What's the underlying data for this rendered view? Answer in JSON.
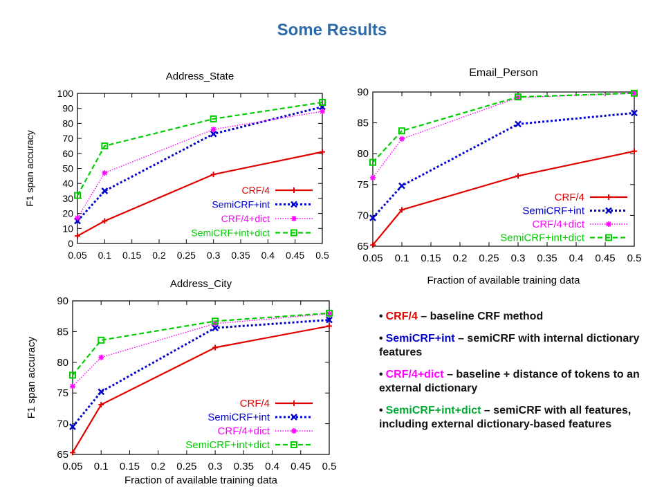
{
  "page": {
    "title": "Some Results"
  },
  "legend_labels": [
    "CRF/4",
    "SemiCRF+int",
    "CRF/4+dict",
    "SemiCRF+int+dict"
  ],
  "notes": [
    {
      "term": "CRF/4",
      "color": "#e00000",
      "text": " – baseline CRF method"
    },
    {
      "term": "SemiCRF+int",
      "color": "#0000cc",
      "text": " – semiCRF with internal dictionary features"
    },
    {
      "term": "CRF/4+dict",
      "color": "#ff00ff",
      "text": " – baseline + distance of tokens to an external dictionary"
    },
    {
      "term": "SemiCRF+int+dict",
      "color": "#00aa33",
      "text": " – semiCRF with all features, including external dictionary-based features"
    }
  ],
  "chart_data": [
    {
      "type": "line",
      "title": "Address_State",
      "xlabel": "",
      "ylabel": "F1 span accuracy",
      "x": [
        0.05,
        0.1,
        0.3,
        0.5
      ],
      "xticks": [
        "0.05",
        "0.1",
        "0.15",
        "0.2",
        "0.25",
        "0.3",
        "0.35",
        "0.4",
        "0.45",
        "0.5"
      ],
      "yticks": [
        "0",
        "10",
        "20",
        "30",
        "40",
        "50",
        "60",
        "70",
        "80",
        "90",
        "100"
      ],
      "xlim": [
        0.05,
        0.5
      ],
      "ylim": [
        0,
        100
      ],
      "legend": "bottom-right",
      "grid": false,
      "series": [
        {
          "name": "CRF/4",
          "values": [
            5,
            15,
            46,
            61
          ],
          "color": "#e00000",
          "style": "solid",
          "marker": "plus"
        },
        {
          "name": "SemiCRF+int",
          "values": [
            15,
            35,
            73,
            91
          ],
          "color": "#0000cc",
          "style": "dotted",
          "marker": "cross"
        },
        {
          "name": "CRF/4+dict",
          "values": [
            17,
            47,
            76,
            88
          ],
          "color": "#ff00ff",
          "style": "dotted-fine",
          "marker": "star"
        },
        {
          "name": "SemiCRF+int+dict",
          "values": [
            32,
            65,
            83,
            94
          ],
          "color": "#00cc00",
          "style": "dashed",
          "marker": "square"
        }
      ]
    },
    {
      "type": "line",
      "title": "Email_Person",
      "xlabel": "Fraction of available training data",
      "ylabel": "",
      "x": [
        0.05,
        0.1,
        0.3,
        0.5
      ],
      "xticks": [
        "0.05",
        "0.1",
        "0.15",
        "0.2",
        "0.25",
        "0.3",
        "0.35",
        "0.4",
        "0.45",
        "0.5"
      ],
      "yticks": [
        "65",
        "70",
        "75",
        "80",
        "85",
        "90"
      ],
      "xlim": [
        0.05,
        0.5
      ],
      "ylim": [
        65,
        90
      ],
      "legend": "bottom-right",
      "grid": false,
      "series": [
        {
          "name": "CRF/4",
          "values": [
            65.2,
            70.9,
            76.4,
            80.4
          ],
          "color": "#e00000",
          "style": "solid",
          "marker": "plus"
        },
        {
          "name": "SemiCRF+int",
          "values": [
            69.6,
            74.8,
            84.8,
            86.6
          ],
          "color": "#0000cc",
          "style": "dotted",
          "marker": "cross"
        },
        {
          "name": "CRF/4+dict",
          "values": [
            76.1,
            82.4,
            89.1,
            89.8
          ],
          "color": "#ff00ff",
          "style": "dotted-fine",
          "marker": "star"
        },
        {
          "name": "SemiCRF+int+dict",
          "values": [
            78.6,
            83.7,
            89.2,
            89.8
          ],
          "color": "#00cc00",
          "style": "dashed",
          "marker": "square"
        }
      ]
    },
    {
      "type": "line",
      "title": "Address_City",
      "xlabel": "Fraction of available training data",
      "ylabel": "F1 span accuracy",
      "x": [
        0.05,
        0.1,
        0.3,
        0.5
      ],
      "xticks": [
        "0.05",
        "0.1",
        "0.15",
        "0.2",
        "0.25",
        "0.3",
        "0.35",
        "0.4",
        "0.45",
        "0.5"
      ],
      "yticks": [
        "65",
        "70",
        "75",
        "80",
        "85",
        "90"
      ],
      "xlim": [
        0.05,
        0.5
      ],
      "ylim": [
        65,
        90
      ],
      "legend": "bottom-right",
      "grid": false,
      "series": [
        {
          "name": "CRF/4",
          "values": [
            65.3,
            73.1,
            82.4,
            85.9
          ],
          "color": "#e00000",
          "style": "solid",
          "marker": "plus"
        },
        {
          "name": "SemiCRF+int",
          "values": [
            69.5,
            75.2,
            85.6,
            86.9
          ],
          "color": "#0000cc",
          "style": "dotted",
          "marker": "cross"
        },
        {
          "name": "CRF/4+dict",
          "values": [
            76.1,
            80.8,
            86.3,
            87.9
          ],
          "color": "#ff00ff",
          "style": "dotted-fine",
          "marker": "star"
        },
        {
          "name": "SemiCRF+int+dict",
          "values": [
            77.9,
            83.6,
            86.7,
            88.0
          ],
          "color": "#00cc00",
          "style": "dashed",
          "marker": "square"
        }
      ]
    }
  ]
}
